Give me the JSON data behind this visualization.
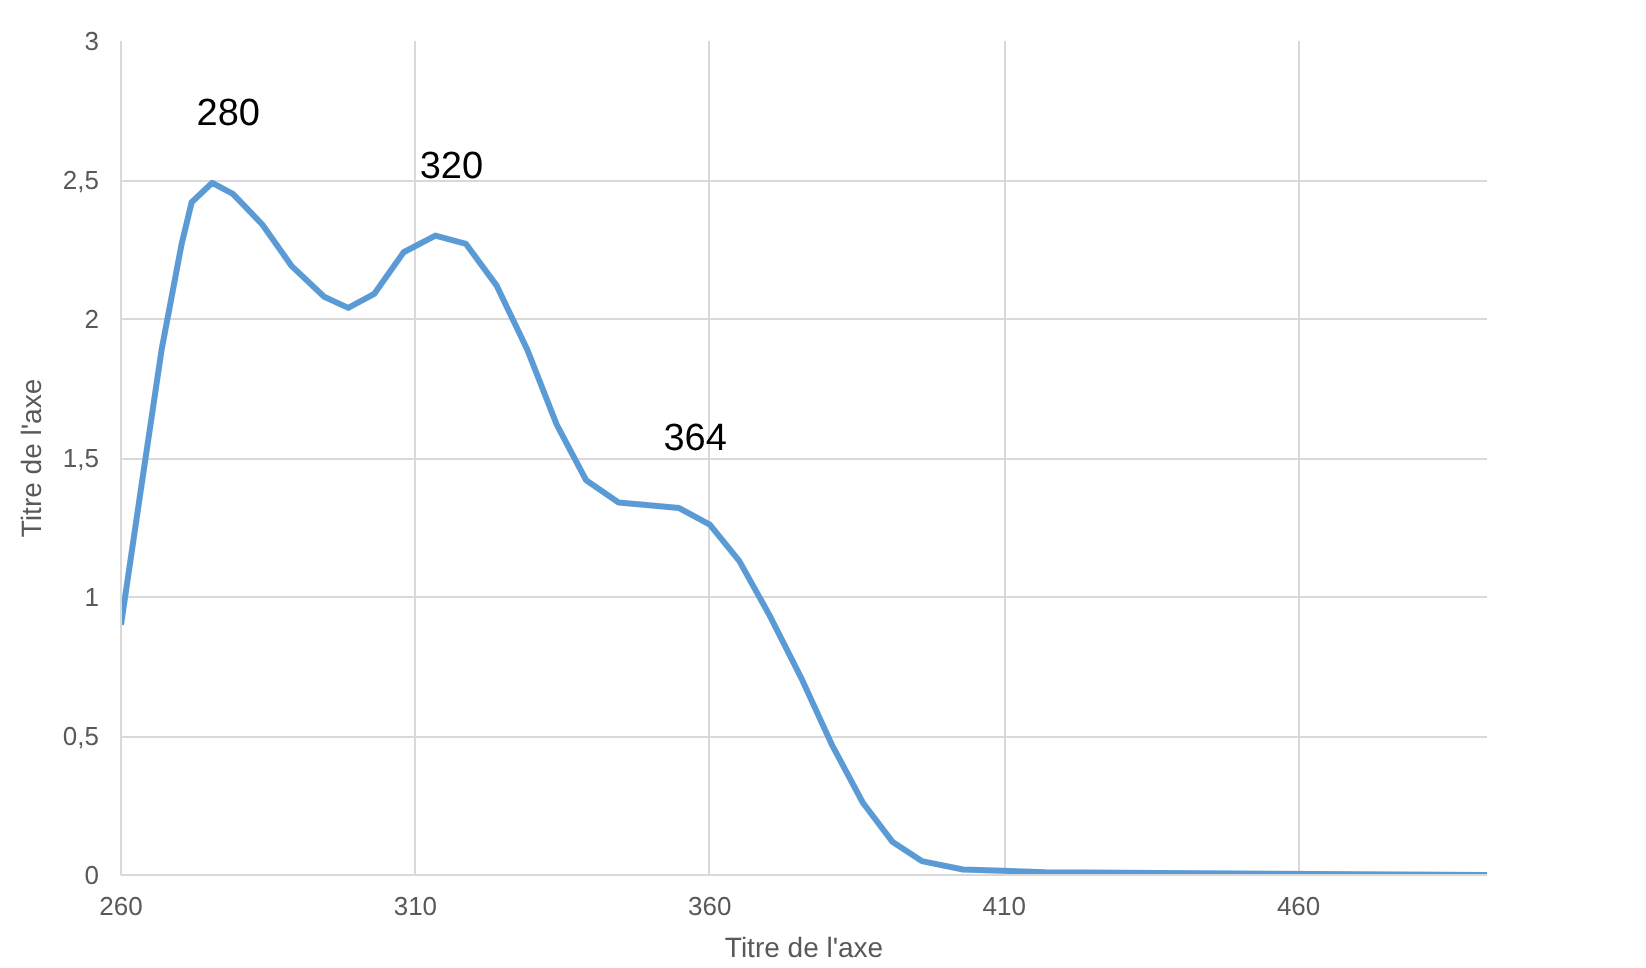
{
  "chart_data": {
    "type": "line",
    "xlabel": "Titre de l'axe",
    "ylabel": "Titre de l'axe",
    "x": [
      260,
      263.4,
      266.9,
      270.3,
      272,
      275.5,
      279,
      284,
      289,
      294.5,
      298.6,
      303,
      308,
      313.4,
      318.6,
      323.8,
      329,
      334,
      339,
      344.5,
      349.7,
      354.8,
      360,
      365,
      370,
      375.5,
      380.7,
      386,
      391,
      396,
      403,
      417,
      492
    ],
    "series": [
      {
        "color": "#5b9bd5",
        "values": [
          0.9,
          1.39,
          1.89,
          2.27,
          2.42,
          2.49,
          2.45,
          2.34,
          2.19,
          2.08,
          2.04,
          2.09,
          2.24,
          2.3,
          2.27,
          2.12,
          1.89,
          1.62,
          1.42,
          1.34,
          1.33,
          1.32,
          1.26,
          1.13,
          0.94,
          0.71,
          0.47,
          0.26,
          0.12,
          0.05,
          0.02,
          0.01,
          0
        ]
      }
    ],
    "xlim": [
      260,
      492
    ],
    "xticks": [
      260,
      310,
      360,
      410,
      460
    ],
    "ylim": [
      0,
      3
    ],
    "yticks": [
      0,
      {
        "value": 0.5,
        "label": "0,5"
      },
      1,
      {
        "value": 1.5,
        "label": "1,5"
      },
      2,
      {
        "value": 2.5,
        "label": "2,5"
      },
      3
    ],
    "grid": true,
    "marker": "none",
    "line_style": "solid",
    "annotations": [
      {
        "text": "280",
        "x": 275.5,
        "y": 2.49
      },
      {
        "text": "320",
        "x": 313.4,
        "y": 2.3
      },
      {
        "text": "364",
        "x": 354.8,
        "y": 1.32
      }
    ]
  }
}
